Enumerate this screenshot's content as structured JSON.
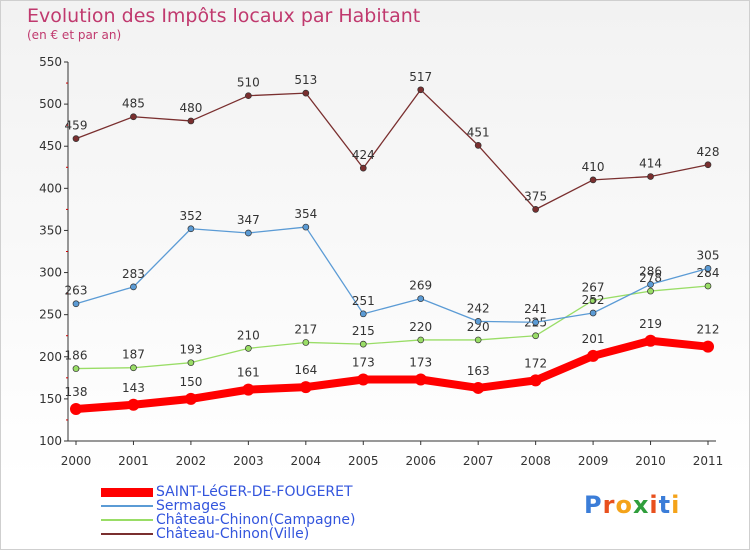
{
  "title": "Evolution des Impôts locaux par Habitant",
  "subtitle": "(en € et par an)",
  "logo": {
    "text": "Proxiti",
    "letters": [
      "P",
      "r",
      "o",
      "x",
      "i",
      "t",
      "i"
    ],
    "colors": [
      "#3b7dd8",
      "#e8501e",
      "#f4a31a",
      "#2f9e3c",
      "#e8501e",
      "#3b7dd8",
      "#f4a31a"
    ]
  },
  "chart_data": {
    "type": "line",
    "title": "Evolution des Impôts locaux par Habitant",
    "subtitle": "(en € et par an)",
    "x": [
      "2000",
      "2001",
      "2002",
      "2003",
      "2004",
      "2005",
      "2006",
      "2007",
      "2008",
      "2009",
      "2010",
      "2011"
    ],
    "ylim": [
      100,
      550
    ],
    "yticks": [
      100,
      150,
      200,
      250,
      300,
      350,
      400,
      450,
      500,
      550
    ],
    "grid": false,
    "legend_position": "bottom-left",
    "series": [
      {
        "name": "SAINT-LéGER-DE-FOUGERET",
        "color": "#ff0000",
        "values": [
          138,
          143,
          150,
          161,
          164,
          173,
          173,
          163,
          172,
          201,
          219,
          212
        ]
      },
      {
        "name": "Sermages",
        "color": "#5b9bd5",
        "values": [
          263,
          283,
          352,
          347,
          354,
          251,
          269,
          242,
          241,
          252,
          286,
          305
        ]
      },
      {
        "name": "Château-Chinon(Campagne)",
        "color": "#99dd66",
        "values": [
          186,
          187,
          193,
          210,
          217,
          215,
          220,
          220,
          225,
          267,
          278,
          284
        ]
      },
      {
        "name": "Château-Chinon(Ville)",
        "color": "#7a2f2f",
        "values": [
          459,
          485,
          480,
          510,
          513,
          424,
          517,
          451,
          375,
          410,
          414,
          428
        ]
      }
    ]
  }
}
